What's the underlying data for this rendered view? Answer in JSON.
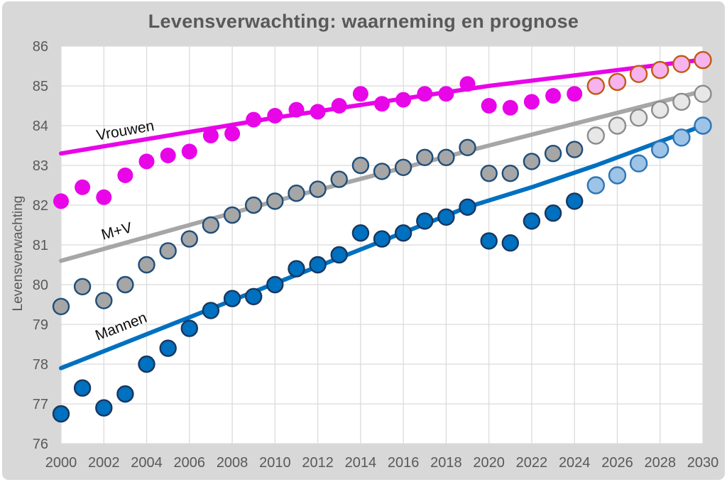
{
  "page": {
    "background": "#FFFFFF",
    "card_color": "#D8D8D8",
    "gridline_color": "#DBDBDB",
    "plot_background": "#FFFFFF",
    "text_color": "#595959"
  },
  "chart_data": {
    "type": "scatter",
    "title": "Levensverwachting: waarneming en prognose",
    "xlabel": "",
    "ylabel": "Levensverwachting",
    "xlim": [
      2000,
      2030
    ],
    "ylim": [
      76,
      86
    ],
    "x_ticks": [
      2000,
      2002,
      2004,
      2006,
      2008,
      2010,
      2012,
      2014,
      2016,
      2018,
      2020,
      2022,
      2024,
      2026,
      2028,
      2030
    ],
    "y_ticks": [
      76,
      77,
      78,
      79,
      80,
      81,
      82,
      83,
      84,
      85,
      86
    ],
    "grid": true,
    "legend_position": "inline-labels",
    "series": [
      {
        "id": "vrouwen-trendlijn",
        "name": "Vrouwen trend- en prognoselijn",
        "kind": "line",
        "color": "#E805E8",
        "width": 6,
        "x": [
          2000,
          2010,
          2020,
          2030
        ],
        "y": [
          83.3,
          84.2,
          85.0,
          85.66
        ]
      },
      {
        "id": "mv-trendlijn",
        "name": "M+V trend- en prognoselijn",
        "kind": "line",
        "color": "#A6A6A6",
        "width": 6,
        "x": [
          2000,
          2010,
          2020,
          2030
        ],
        "y": [
          80.6,
          82.1,
          83.5,
          84.87
        ]
      },
      {
        "id": "mannen-trendlijn",
        "name": "Mannen trend- en prognoselijn",
        "kind": "line",
        "color": "#0070C0",
        "width": 6,
        "x": [
          2000,
          2019,
          2022,
          2025,
          2030
        ],
        "y": [
          77.9,
          81.95,
          82.45,
          83.0,
          84.0
        ]
      },
      {
        "id": "vrouwen-waarneming",
        "name": "Vrouwen waarneming",
        "kind": "points",
        "fill": "#E805E8",
        "stroke": "none",
        "r": 11,
        "x": [
          2000,
          2001,
          2002,
          2003,
          2004,
          2005,
          2006,
          2007,
          2008,
          2009,
          2010,
          2011,
          2012,
          2013,
          2014,
          2015,
          2016,
          2017,
          2018,
          2019,
          2020,
          2021,
          2022,
          2023,
          2024
        ],
        "y": [
          82.1,
          82.45,
          82.2,
          82.75,
          83.1,
          83.25,
          83.35,
          83.75,
          83.8,
          84.15,
          84.25,
          84.4,
          84.35,
          84.5,
          84.8,
          84.55,
          84.65,
          84.8,
          84.8,
          85.05,
          84.5,
          84.45,
          84.6,
          84.75,
          84.8
        ]
      },
      {
        "id": "mv-waarneming",
        "name": "M+V waarneming",
        "kind": "points",
        "fill": "#A6A6A6",
        "stroke": "#1F4E79",
        "r": 11,
        "x": [
          2000,
          2001,
          2002,
          2003,
          2004,
          2005,
          2006,
          2007,
          2008,
          2009,
          2010,
          2011,
          2012,
          2013,
          2014,
          2015,
          2016,
          2017,
          2018,
          2019,
          2020,
          2021,
          2022,
          2023,
          2024
        ],
        "y": [
          79.45,
          79.95,
          79.6,
          80.0,
          80.5,
          80.85,
          81.15,
          81.5,
          81.75,
          82.0,
          82.1,
          82.3,
          82.4,
          82.65,
          83.0,
          82.85,
          82.95,
          83.2,
          83.2,
          83.45,
          82.8,
          82.8,
          83.1,
          83.3,
          83.4
        ]
      },
      {
        "id": "mannen-waarneming",
        "name": "Mannen waarneming",
        "kind": "points",
        "fill": "#0070C0",
        "stroke": "#17375E",
        "r": 11,
        "x": [
          2000,
          2001,
          2002,
          2003,
          2004,
          2005,
          2006,
          2007,
          2008,
          2009,
          2010,
          2011,
          2012,
          2013,
          2014,
          2015,
          2016,
          2017,
          2018,
          2019,
          2020,
          2021,
          2022,
          2023,
          2024
        ],
        "y": [
          76.75,
          77.4,
          76.9,
          77.25,
          78.0,
          78.4,
          78.9,
          79.35,
          79.65,
          79.7,
          80.0,
          80.4,
          80.5,
          80.75,
          81.3,
          81.15,
          81.3,
          81.6,
          81.7,
          81.95,
          81.1,
          81.05,
          81.6,
          81.8,
          82.1
        ]
      },
      {
        "id": "vrouwen-prognose",
        "name": "Vrouwen prognose",
        "kind": "points",
        "fill": "#F6B3EE",
        "stroke": "#C45911",
        "r": 11.5,
        "x": [
          2025,
          2026,
          2027,
          2028,
          2029,
          2030
        ],
        "y": [
          85.0,
          85.1,
          85.3,
          85.4,
          85.55,
          85.65
        ]
      },
      {
        "id": "mv-prognose",
        "name": "M+V prognose",
        "kind": "points",
        "fill": "#E7E7E7",
        "stroke": "#8C8C8C",
        "r": 11.5,
        "x": [
          2025,
          2026,
          2027,
          2028,
          2029,
          2030
        ],
        "y": [
          83.75,
          84.0,
          84.2,
          84.4,
          84.6,
          84.8
        ]
      },
      {
        "id": "mannen-prognose",
        "name": "Mannen prognose",
        "kind": "points",
        "fill": "#9DC3E6",
        "stroke": "#2E75B6",
        "r": 11.5,
        "x": [
          2025,
          2026,
          2027,
          2028,
          2029,
          2030
        ],
        "y": [
          82.5,
          82.75,
          83.05,
          83.4,
          83.7,
          84.0
        ]
      }
    ],
    "series_labels": [
      {
        "text": "Vrouwen",
        "x": 2003.0,
        "y": 83.88,
        "angle": -10
      },
      {
        "text": "M+V",
        "x": 2002.6,
        "y": 81.35,
        "angle": -15
      },
      {
        "text": "Mannen",
        "x": 2002.8,
        "y": 78.95,
        "angle": -21
      }
    ]
  }
}
